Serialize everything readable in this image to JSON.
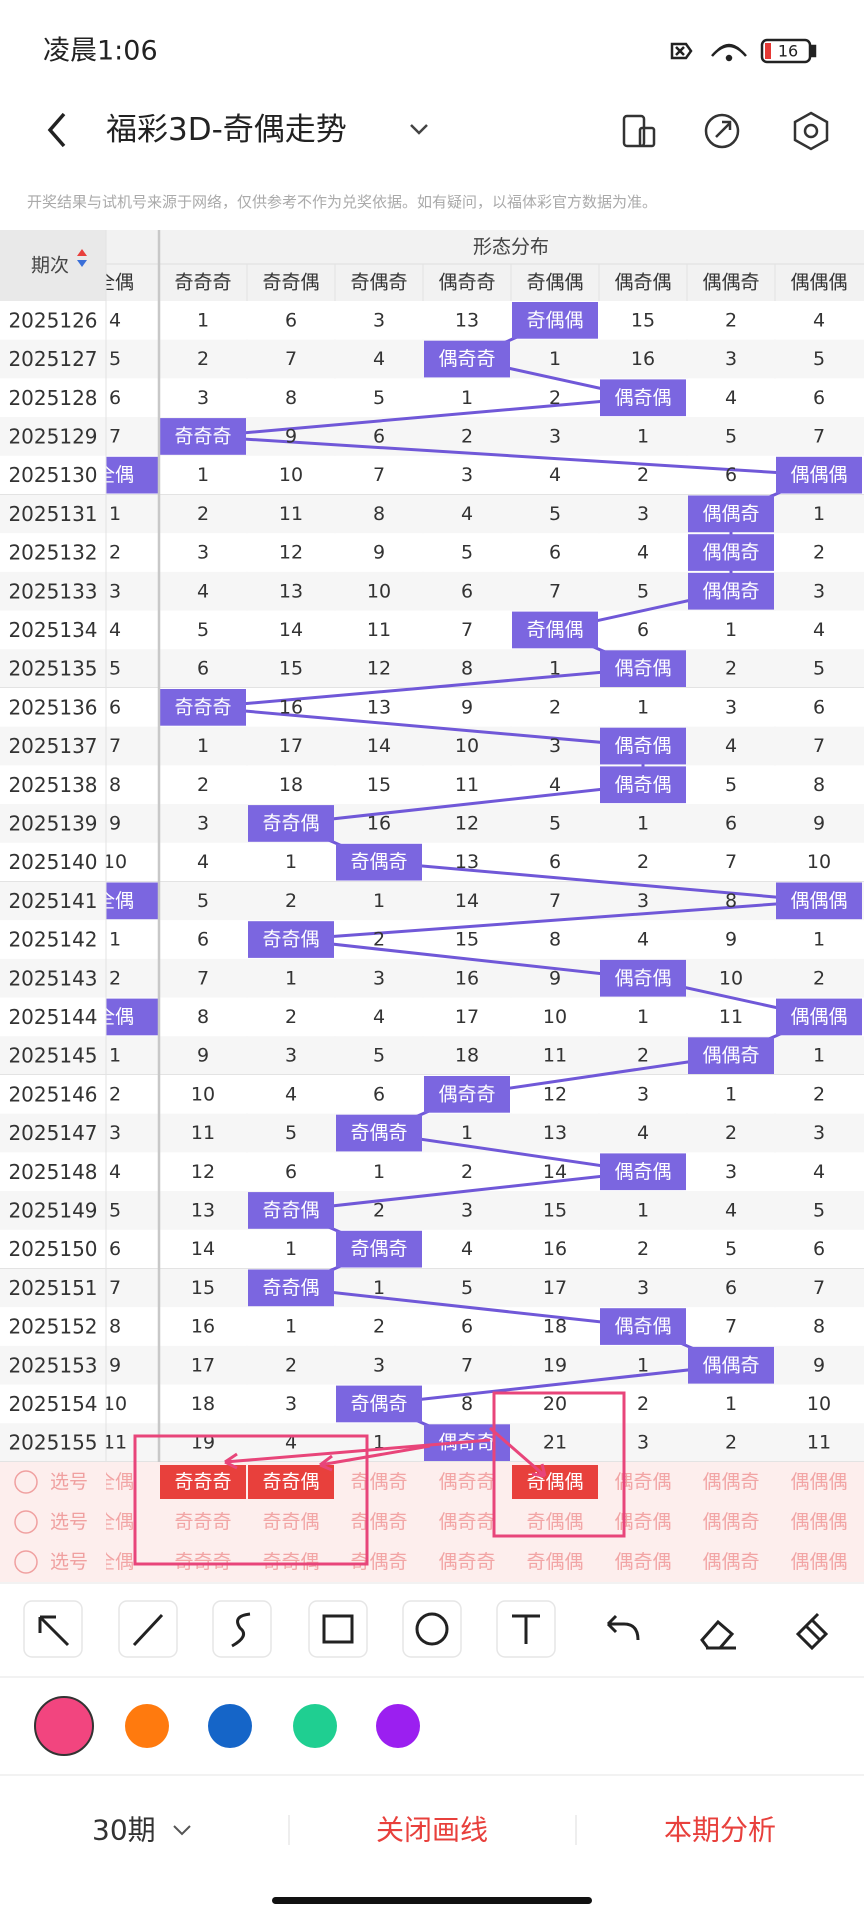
{
  "status_bar": {
    "time": "凌晨1:06",
    "battery": "16"
  },
  "header": {
    "title": "福彩3D-奇偶走势"
  },
  "notice": "开奖结果与试机号来源于网络，仅供参考不作为兑奖依据。如有疑问，以福体彩官方数据为准。",
  "table": {
    "issue_header": "期次",
    "group_header": "形态分布",
    "columns": [
      "全偶",
      "奇奇奇",
      "奇奇偶",
      "奇偶奇",
      "偶奇奇",
      "奇偶偶",
      "偶奇偶",
      "偶偶奇",
      "偶偶偶"
    ],
    "rows": [
      [
        2025126,
        4,
        1,
        6,
        3,
        13,
        "奇偶偶",
        15,
        2,
        4
      ],
      [
        2025127,
        5,
        2,
        7,
        4,
        "偶奇奇",
        1,
        16,
        3,
        5
      ],
      [
        2025128,
        6,
        3,
        8,
        5,
        1,
        2,
        "偶奇偶",
        4,
        6
      ],
      [
        2025129,
        7,
        "奇奇奇",
        9,
        6,
        2,
        3,
        1,
        5,
        7
      ],
      [
        2025130,
        "全偶",
        1,
        10,
        7,
        3,
        4,
        2,
        6,
        "偶偶偶"
      ],
      [
        2025131,
        1,
        2,
        11,
        8,
        4,
        5,
        3,
        "偶偶奇",
        1
      ],
      [
        2025132,
        2,
        3,
        12,
        9,
        5,
        6,
        4,
        "偶偶奇",
        2
      ],
      [
        2025133,
        3,
        4,
        13,
        10,
        6,
        7,
        5,
        "偶偶奇",
        3
      ],
      [
        2025134,
        4,
        5,
        14,
        11,
        7,
        "奇偶偶",
        6,
        1,
        4
      ],
      [
        2025135,
        5,
        6,
        15,
        12,
        8,
        1,
        "偶奇偶",
        2,
        5
      ],
      [
        2025136,
        6,
        "奇奇奇",
        16,
        13,
        9,
        2,
        1,
        3,
        6
      ],
      [
        2025137,
        7,
        1,
        17,
        14,
        10,
        3,
        "偶奇偶",
        4,
        7
      ],
      [
        2025138,
        8,
        2,
        18,
        15,
        11,
        4,
        "偶奇偶",
        5,
        8
      ],
      [
        2025139,
        9,
        3,
        "奇奇偶",
        16,
        12,
        5,
        1,
        6,
        9
      ],
      [
        2025140,
        10,
        4,
        1,
        "奇偶奇",
        13,
        6,
        2,
        7,
        10
      ],
      [
        2025141,
        "全偶",
        5,
        2,
        1,
        14,
        7,
        3,
        8,
        "偶偶偶"
      ],
      [
        2025142,
        1,
        6,
        "奇奇偶",
        2,
        15,
        8,
        4,
        9,
        1
      ],
      [
        2025143,
        2,
        7,
        1,
        3,
        16,
        9,
        "偶奇偶",
        10,
        2
      ],
      [
        2025144,
        "全偶",
        8,
        2,
        4,
        17,
        10,
        1,
        11,
        "偶偶偶"
      ],
      [
        2025145,
        1,
        9,
        3,
        5,
        18,
        11,
        2,
        "偶偶奇",
        1
      ],
      [
        2025146,
        2,
        10,
        4,
        6,
        "偶奇奇",
        12,
        3,
        1,
        2
      ],
      [
        2025147,
        3,
        11,
        5,
        "奇偶奇",
        1,
        13,
        4,
        2,
        3
      ],
      [
        2025148,
        4,
        12,
        6,
        1,
        2,
        14,
        "偶奇偶",
        3,
        4
      ],
      [
        2025149,
        5,
        13,
        "奇奇偶",
        2,
        3,
        15,
        1,
        4,
        5
      ],
      [
        2025150,
        6,
        14,
        1,
        "奇偶奇",
        4,
        16,
        2,
        5,
        6
      ],
      [
        2025151,
        7,
        15,
        "奇奇偶",
        1,
        5,
        17,
        3,
        6,
        7
      ],
      [
        2025152,
        8,
        16,
        1,
        2,
        6,
        18,
        "偶奇偶",
        7,
        8
      ],
      [
        2025153,
        9,
        17,
        2,
        3,
        7,
        19,
        1,
        "偶偶奇",
        9
      ],
      [
        2025154,
        10,
        18,
        3,
        "奇偶奇",
        8,
        20,
        2,
        1,
        10
      ],
      [
        2025155,
        11,
        19,
        4,
        1,
        "偶奇奇",
        21,
        3,
        2,
        11
      ]
    ]
  },
  "select_rows": [
    {
      "label": "选号",
      "selected": [
        1,
        2,
        5
      ]
    },
    {
      "label": "选号",
      "selected": []
    },
    {
      "label": "选号",
      "selected": []
    }
  ],
  "footer": {
    "period": "30期",
    "close_lines": "关闭画线",
    "analysis": "本期分析"
  }
}
